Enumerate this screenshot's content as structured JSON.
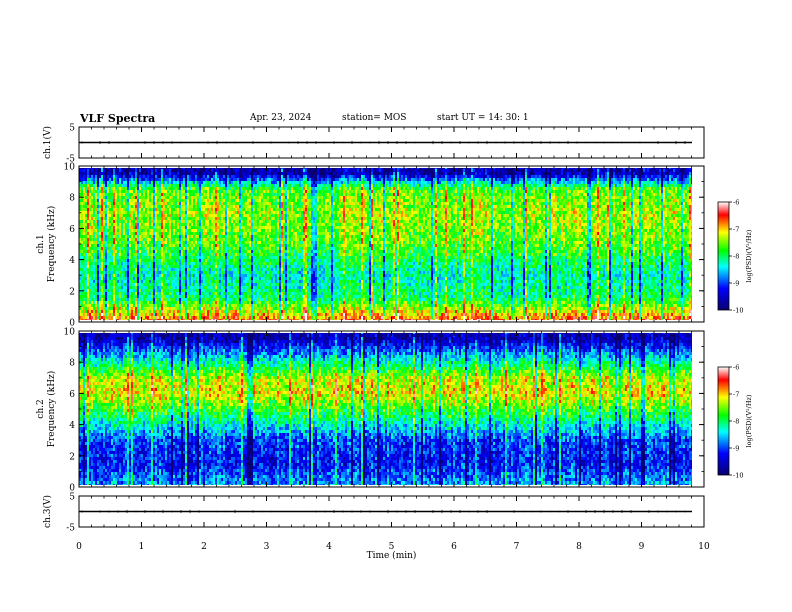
{
  "header": {
    "title": "VLF Spectra",
    "date": "Apr. 23, 2024",
    "station": "station= MOS",
    "start": "start  UT =   14: 30: 1"
  },
  "colors": {
    "background": "#ffffff",
    "axis": "#000000",
    "colormap": [
      "#08006e",
      "#0000ff",
      "#00ffff",
      "#00ff00",
      "#ffff00",
      "#ff0000",
      "#ffffff"
    ]
  },
  "chart_data": [
    {
      "type": "line",
      "panel": "ch1-waveform",
      "ylabel": "ch.1(V)",
      "ylim": [
        -5,
        5
      ],
      "yticks": [
        "5",
        "-5"
      ],
      "xlim": [
        0,
        10
      ],
      "series": [
        {
          "values_note": "flat trace near",
          "level": 0
        }
      ]
    },
    {
      "type": "heatmap",
      "panel": "ch1-spectrogram",
      "ylabel": "ch.1\nFrequency (kHz)",
      "ylim": [
        0,
        10
      ],
      "yticks": [
        "0",
        "2",
        "4",
        "6",
        "8",
        "10"
      ],
      "xlim": [
        0,
        10
      ],
      "colorbar": {
        "label": "log(PSD)(V²/Hz)",
        "range": [
          -10,
          -6
        ],
        "ticks": [
          "-6",
          "-7",
          "-8",
          "-9",
          "-10"
        ]
      },
      "intensity_profile_log_psd": [
        {
          "freq_khz": 0.5,
          "level": -7.0
        },
        {
          "freq_khz": 1.5,
          "level": -8.0
        },
        {
          "freq_khz": 3.0,
          "level": -8.3
        },
        {
          "freq_khz": 5.0,
          "level": -7.6
        },
        {
          "freq_khz": 7.0,
          "level": -7.4
        },
        {
          "freq_khz": 8.5,
          "level": -7.6
        },
        {
          "freq_khz": 9.5,
          "level": -9.6
        }
      ]
    },
    {
      "type": "heatmap",
      "panel": "ch2-spectrogram",
      "ylabel": "ch.2\nFrequency (kHz)",
      "ylim": [
        0,
        10
      ],
      "yticks": [
        "0",
        "2",
        "4",
        "6",
        "8",
        "10"
      ],
      "xlim": [
        0,
        10
      ],
      "colorbar": {
        "label": "log(PSD)(V²/Hz)",
        "range": [
          -10,
          -6
        ],
        "ticks": [
          "-6",
          "-7",
          "-8",
          "-9",
          "-10"
        ]
      },
      "intensity_profile_log_psd": [
        {
          "freq_khz": 0.5,
          "level": -8.8
        },
        {
          "freq_khz": 1.5,
          "level": -9.2
        },
        {
          "freq_khz": 3.0,
          "level": -9.0
        },
        {
          "freq_khz": 4.5,
          "level": -8.0
        },
        {
          "freq_khz": 6.0,
          "level": -7.1
        },
        {
          "freq_khz": 7.0,
          "level": -7.3
        },
        {
          "freq_khz": 8.2,
          "level": -8.4
        },
        {
          "freq_khz": 9.5,
          "level": -9.6
        }
      ]
    },
    {
      "type": "line",
      "panel": "ch3-waveform",
      "ylabel": "ch.3(V)",
      "ylim": [
        -5,
        5
      ],
      "yticks": [
        "5",
        "-5"
      ],
      "xlim": [
        0,
        10
      ],
      "xlabel": "Time  (min)",
      "xticks": [
        "0",
        "1",
        "2",
        "3",
        "4",
        "5",
        "6",
        "7",
        "8",
        "9",
        "10"
      ],
      "series": [
        {
          "level": 0
        }
      ]
    }
  ]
}
